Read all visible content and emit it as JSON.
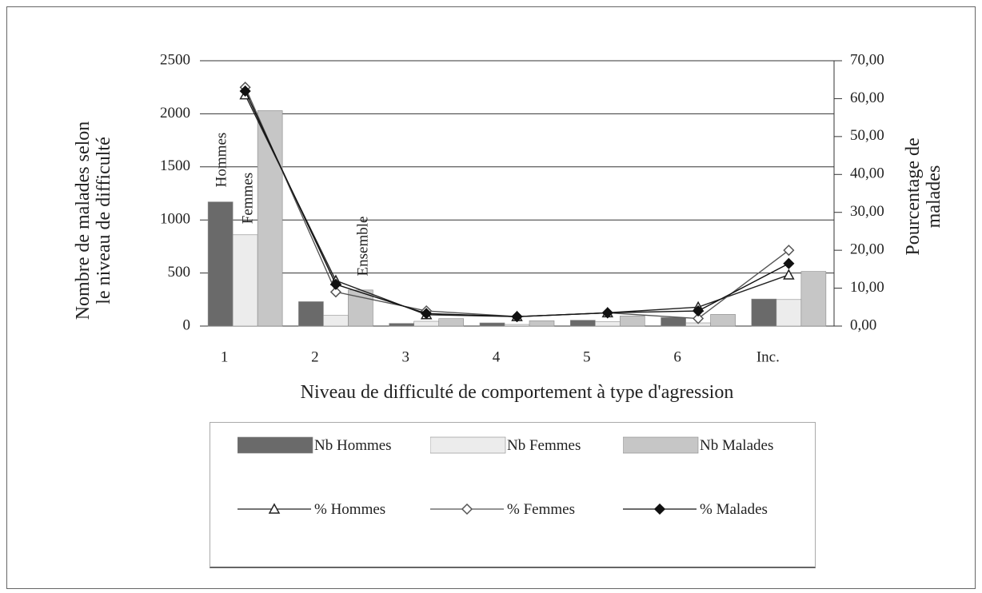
{
  "chart_data": {
    "type": "bar",
    "x_label": "Niveau de difficulté de comportement à type d'agression",
    "y_label": "Nombre de malades selon le niveau de difficulté",
    "y2_label": "Pourcentage de malades",
    "categories": [
      "1",
      "2",
      "3",
      "4",
      "5",
      "6",
      "Inc."
    ],
    "annotations": [
      "Hommes",
      "Femmes",
      "Ensemble"
    ],
    "ylim": [
      0,
      2500
    ],
    "yticks": [
      0,
      500,
      1000,
      1500,
      2000,
      2500
    ],
    "y2lim": [
      0,
      70
    ],
    "y2ticks": [
      {
        "value": 0,
        "label": "0,00"
      },
      {
        "value": 10,
        "label": "10,00"
      },
      {
        "value": 20,
        "label": "20,00"
      },
      {
        "value": 30,
        "label": "30,00"
      },
      {
        "value": 40,
        "label": "40,00"
      },
      {
        "value": 50,
        "label": "50,00"
      },
      {
        "value": 60,
        "label": "60,00"
      },
      {
        "value": 70,
        "label": "70,00"
      }
    ],
    "grid": true,
    "series": [
      {
        "name": "Nb Hommes",
        "type": "bar",
        "color": "#6a6a6a",
        "values": [
          1170,
          230,
          25,
          30,
          55,
          80,
          255
        ]
      },
      {
        "name": "Nb Femmes",
        "type": "bar",
        "color": "#ececec",
        "values": [
          860,
          100,
          45,
          15,
          40,
          30,
          250
        ]
      },
      {
        "name": "Nb Malades",
        "type": "bar",
        "color": "#c6c6c6",
        "values": [
          2030,
          340,
          70,
          50,
          95,
          110,
          515
        ]
      },
      {
        "name": "% Hommes",
        "type": "line",
        "axis": "y2",
        "color": "#222222",
        "marker": "triangle",
        "values": [
          61,
          12,
          3,
          2.5,
          3.5,
          5,
          13.5
        ]
      },
      {
        "name": "% Femmes",
        "type": "line",
        "axis": "y2",
        "color": "#555555",
        "marker": "open-diamond",
        "values": [
          63,
          9,
          4,
          2.5,
          3.5,
          2,
          20
        ]
      },
      {
        "name": "% Malades",
        "type": "line",
        "axis": "y2",
        "color": "#111111",
        "marker": "diamond",
        "values": [
          62,
          11,
          3.3,
          2.5,
          3.5,
          4,
          16.5
        ]
      }
    ]
  }
}
